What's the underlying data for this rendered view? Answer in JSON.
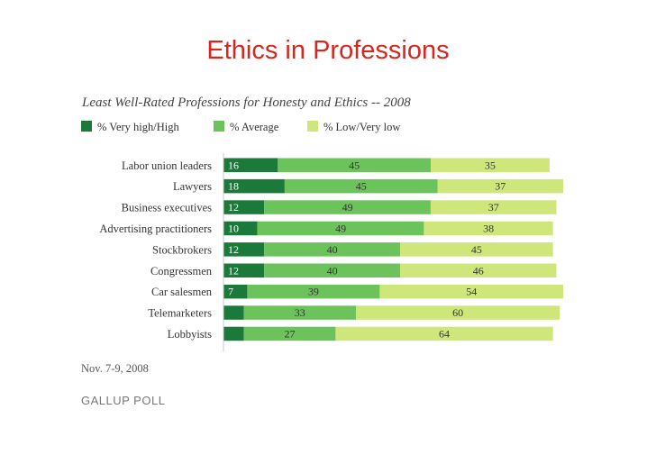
{
  "slide_title": "Ethics in Professions",
  "footer": {
    "date_note": "Nov. 7-9, 2008",
    "source": "GALLUP POLL"
  },
  "colors": {
    "very_high_high": "#1b7a3a",
    "average": "#6cc35c",
    "low_very_low": "#cfe77a",
    "title": "#d7261e",
    "label_dark": "#ffffff",
    "label_light": "#333333"
  },
  "chart_data": {
    "type": "bar",
    "orientation": "horizontal",
    "stacked": true,
    "title": "Least Well-Rated Professions for Honesty and Ethics -- 2008",
    "legend_position": "top-left",
    "grid": false,
    "categories": [
      "Labor union leaders",
      "Lawyers",
      "Business executives",
      "Advertising practitioners",
      "Stockbrokers",
      "Congressmen",
      "Car salesmen",
      "Telemarketers",
      "Lobbyists"
    ],
    "series": [
      {
        "name": "% Very high/High",
        "values": [
          16,
          18,
          12,
          10,
          12,
          12,
          7,
          6,
          6
        ],
        "shown_labels": [
          "16",
          "18",
          "12",
          "10",
          "12",
          "12",
          "7",
          "",
          ""
        ]
      },
      {
        "name": "% Average",
        "values": [
          45,
          45,
          49,
          49,
          40,
          40,
          39,
          33,
          27
        ],
        "shown_labels": [
          "45",
          "45",
          "49",
          "49",
          "40",
          "40",
          "39",
          "33",
          "27"
        ]
      },
      {
        "name": "% Low/Very low",
        "values": [
          35,
          37,
          37,
          38,
          45,
          46,
          54,
          60,
          64
        ],
        "shown_labels": [
          "35",
          "37",
          "37",
          "38",
          "45",
          "46",
          "54",
          "60",
          "64"
        ]
      }
    ]
  }
}
